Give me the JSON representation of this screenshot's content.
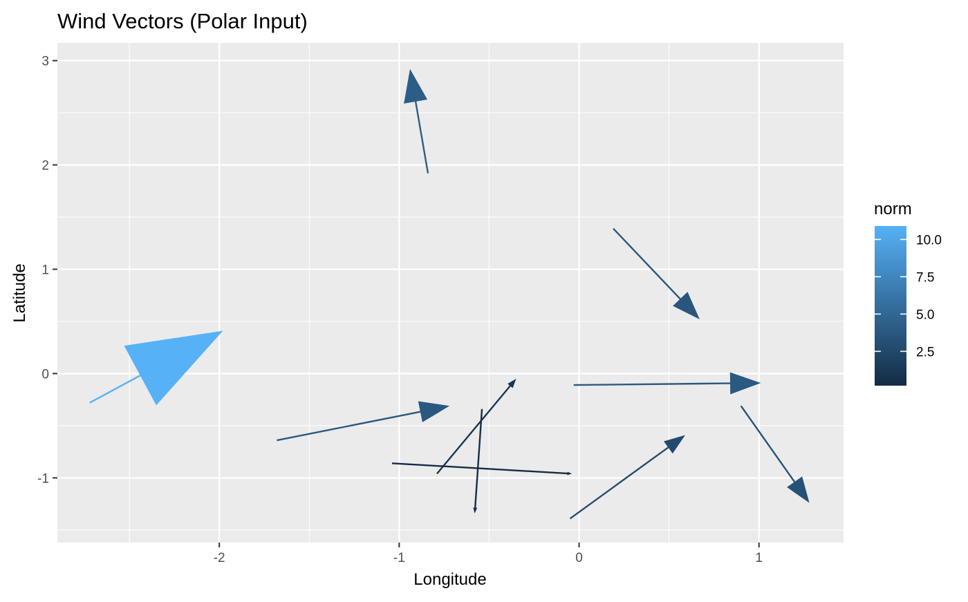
{
  "chart_data": {
    "type": "vector_field",
    "title": "Wind Vectors (Polar Input)",
    "xlabel": "Longitude",
    "ylabel": "Latitude",
    "xlim": [
      -2.9,
      1.47
    ],
    "ylim": [
      -1.62,
      3.17
    ],
    "x_ticks": [
      -2,
      -1,
      0,
      1
    ],
    "x_tick_labels": [
      "-2",
      "-1",
      "0",
      "1"
    ],
    "y_ticks": [
      -1,
      0,
      1,
      2,
      3
    ],
    "y_tick_labels": [
      "-1",
      "0",
      "1",
      "2",
      "3"
    ],
    "x_minor_ticks": [
      -2.5,
      -1.5,
      -0.5,
      0.5
    ],
    "y_minor_ticks": [
      -1.5,
      -0.5,
      0.5,
      1.5,
      2.5
    ],
    "grid": true,
    "legend": {
      "title": "norm",
      "position": "right",
      "type": "colorbar",
      "range": [
        0.2,
        10.9
      ],
      "ticks": [
        2.5,
        5.0,
        7.5,
        10.0
      ],
      "tick_labels": [
        "2.5",
        "5.0",
        "7.5",
        "10.0"
      ],
      "color_low": "#132B43",
      "color_high": "#56B1F7"
    },
    "vectors": [
      {
        "x": -2.72,
        "y": -0.28,
        "xend": -1.98,
        "yend": 0.41,
        "norm": 10.9
      },
      {
        "x": -0.84,
        "y": 1.92,
        "xend": -0.94,
        "yend": 2.92,
        "norm": 4.2
      },
      {
        "x": 0.19,
        "y": 1.39,
        "xend": 0.67,
        "yend": 0.52,
        "norm": 3.6
      },
      {
        "x": -0.03,
        "y": -0.11,
        "xend": 1.01,
        "yend": -0.09,
        "norm": 3.9
      },
      {
        "x": -1.68,
        "y": -0.64,
        "xend": -0.72,
        "yend": -0.31,
        "norm": 3.8
      },
      {
        "x": 0.9,
        "y": -0.31,
        "xend": 1.28,
        "yend": -1.24,
        "norm": 3.3
      },
      {
        "x": -0.05,
        "y": -1.39,
        "xend": 0.59,
        "yend": -0.59,
        "norm": 2.7
      },
      {
        "x": -0.79,
        "y": -0.96,
        "xend": -0.35,
        "yend": -0.05,
        "norm": 1.1
      },
      {
        "x": -0.54,
        "y": -0.34,
        "xend": -0.58,
        "yend": -1.34,
        "norm": 0.5
      },
      {
        "x": -1.04,
        "y": -0.86,
        "xend": -0.04,
        "yend": -0.96,
        "norm": 0.3
      }
    ]
  }
}
